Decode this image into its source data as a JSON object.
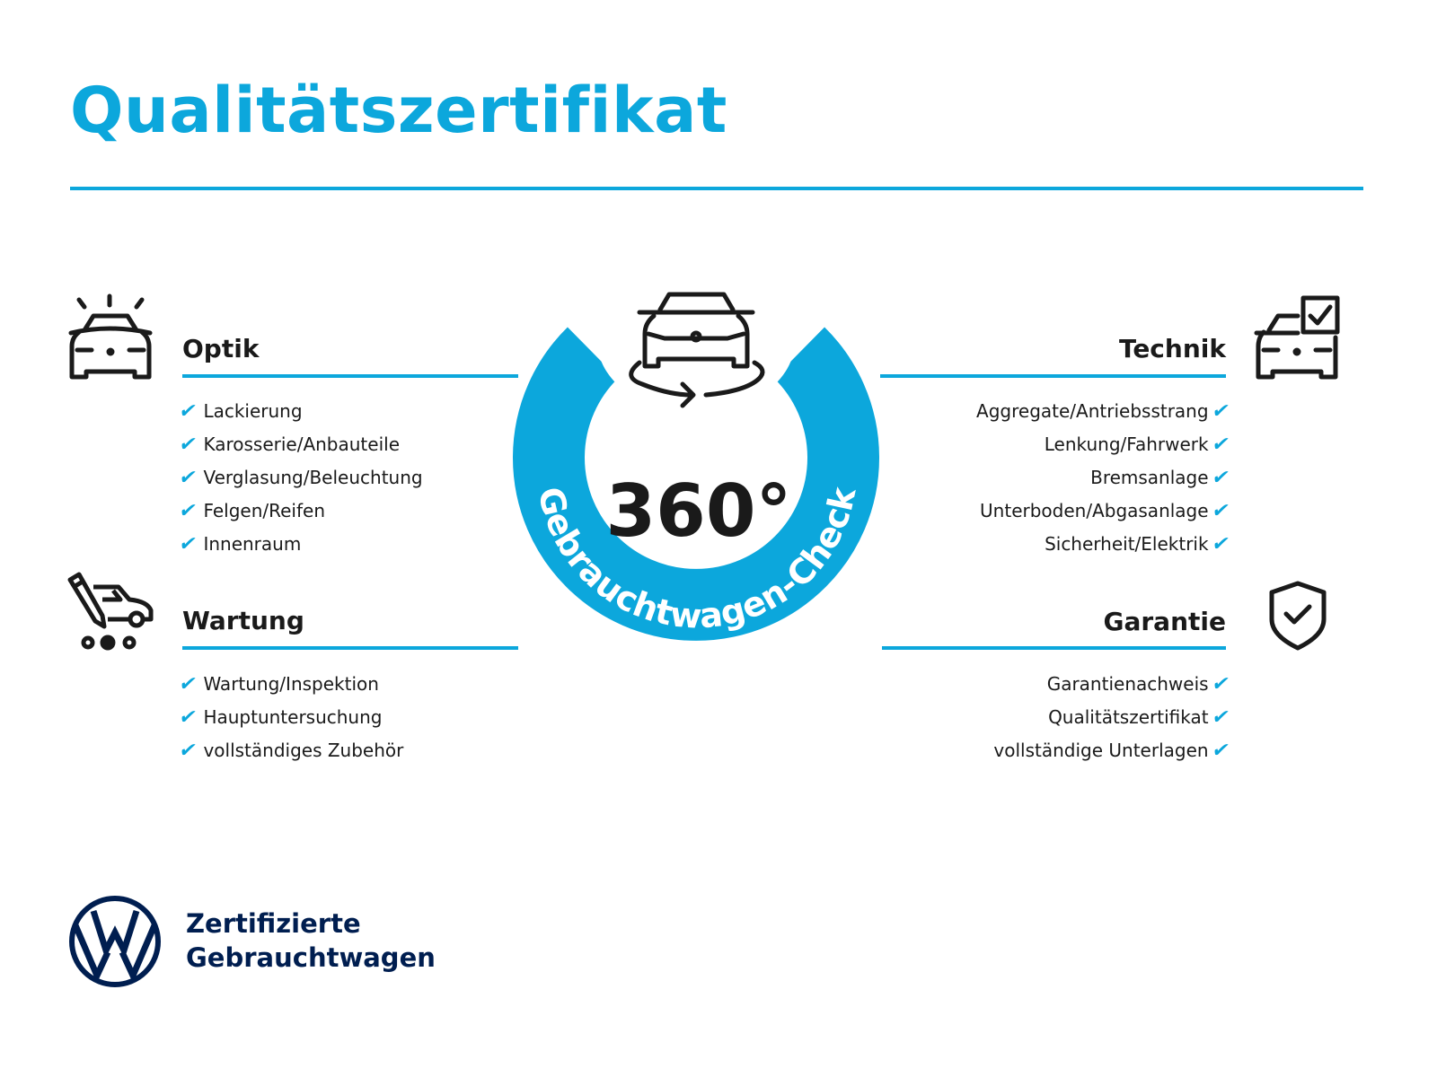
{
  "title": "Qualitätszertifikat",
  "center": {
    "degrees": "360°",
    "ring_text": "Gebrauchtwagen-Check"
  },
  "sections": {
    "optik": {
      "heading": "Optik",
      "items": [
        "Lackierung",
        "Karosserie/Anbauteile",
        "Verglasung/Beleuchtung",
        "Felgen/Reifen",
        "Innenraum"
      ]
    },
    "wartung": {
      "heading": "Wartung",
      "items": [
        "Wartung/Inspektion",
        "Hauptuntersuchung",
        "vollständiges Zubehör"
      ]
    },
    "technik": {
      "heading": "Technik",
      "items": [
        "Aggregate/Antriebsstrang",
        "Lenkung/Fahrwerk",
        "Bremsanlage",
        "Unterboden/Abgasanlage",
        "Sicherheit/Elektrik"
      ]
    },
    "garantie": {
      "heading": "Garantie",
      "items": [
        "Garantienachweis",
        "Qualitätszertifikat",
        "vollständige Unterlagen"
      ]
    }
  },
  "check_glyph": "✔",
  "brand": {
    "line1": "Zertifizierte",
    "line2": "Gebrauchtwagen",
    "logo": "VW"
  },
  "colors": {
    "accent": "#0ca7dc",
    "brand_navy": "#001e50",
    "text": "#1a1a1a"
  }
}
